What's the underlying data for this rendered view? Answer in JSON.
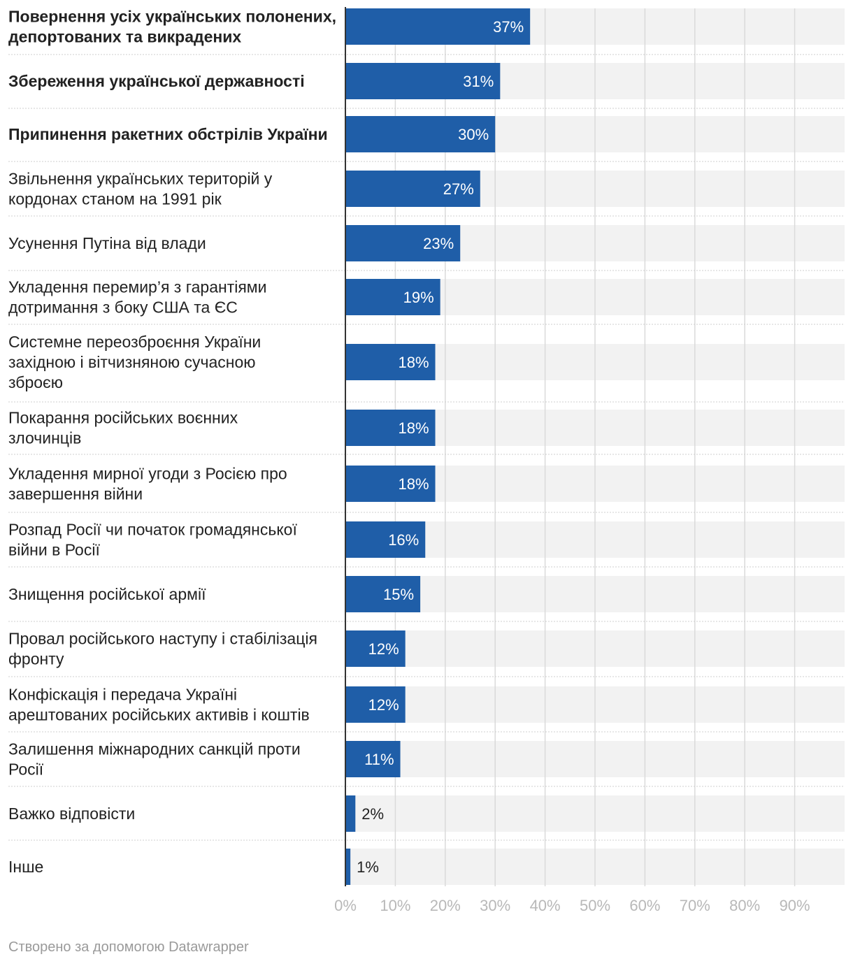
{
  "chart_data": {
    "type": "bar",
    "orientation": "horizontal",
    "categories": [
      {
        "label": "Повернення усіх українських полонених, депортованих та викрадених",
        "bold": true
      },
      {
        "label": "Збереження української державності",
        "bold": true
      },
      {
        "label": "Припинення ракетних обстрілів України",
        "bold": true
      },
      {
        "label": "Звільнення українських територій у кордонах станом на 1991 рік",
        "bold": false
      },
      {
        "label": "Усунення Путіна від влади",
        "bold": false
      },
      {
        "label": "Укладення перемир’я з гарантіями дотримання з боку США та ЄС",
        "bold": false
      },
      {
        "label": "Системне переозброєння України західною і вітчизняною сучасною зброєю",
        "bold": false
      },
      {
        "label": "Покарання російських воєнних злочинців",
        "bold": false
      },
      {
        "label": "Укладення мирної угоди з Росією про завершення війни",
        "bold": false
      },
      {
        "label": "Розпад Росії чи початок громадянської війни в Росії",
        "bold": false
      },
      {
        "label": "Знищення російської армії",
        "bold": false
      },
      {
        "label": "Провал російського наступу і стабілізація фронту",
        "bold": false
      },
      {
        "label": "Конфіскація і передача Україні арештованих російських активів і коштів",
        "bold": false
      },
      {
        "label": "Залишення міжнародних санкцій проти Росії",
        "bold": false
      },
      {
        "label": "Важко відповісти",
        "bold": false
      },
      {
        "label": "Інше",
        "bold": false
      }
    ],
    "values": [
      37,
      31,
      30,
      27,
      23,
      19,
      18,
      18,
      18,
      16,
      15,
      12,
      12,
      11,
      2,
      1
    ],
    "value_labels": [
      "37%",
      "31%",
      "30%",
      "27%",
      "23%",
      "19%",
      "18%",
      "18%",
      "18%",
      "16%",
      "15%",
      "12%",
      "12%",
      "11%",
      "2%",
      "1%"
    ],
    "xlim": [
      0,
      100
    ],
    "x_ticks": [
      0,
      10,
      20,
      30,
      40,
      50,
      60,
      70,
      80,
      90
    ],
    "x_tick_labels": [
      "0%",
      "10%",
      "20%",
      "30%",
      "40%",
      "50%",
      "60%",
      "70%",
      "80%",
      "90%"
    ],
    "grid": true,
    "colors": {
      "bar": "#1f5ea8",
      "background_bar": "#f2f2f2",
      "grid": "#dadada",
      "label_inside": "#ffffff",
      "label_outside": "#222222"
    }
  },
  "footer": "Створено за допомогою Datawrapper"
}
